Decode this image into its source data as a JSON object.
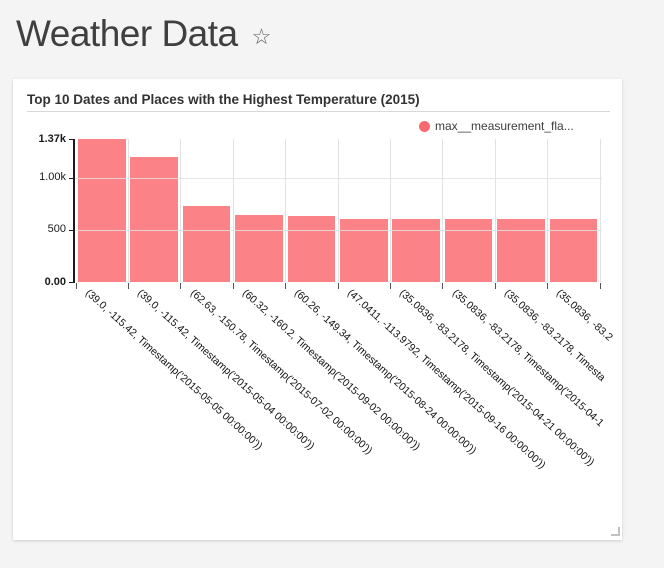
{
  "header": {
    "title": "Weather Data",
    "favorite_icon_glyph": "☆"
  },
  "chart_data": {
    "type": "bar",
    "title": "Top 10 Dates and Places with the Highest Temperature (2015)",
    "legend_label": "max__measurement_fla...",
    "legend_position": "top-right",
    "categories": [
      "(39.0, -115.42, Timestamp('2015-05-05 00:00:00'))",
      "(39.0, -115.42, Timestamp('2015-05-04 00:00:00'))",
      "(62.63, -150.78, Timestamp('2015-07-02 00:00:00'))",
      "(60.32, -160.2, Timestamp('2015-09-02 00:00:00'))",
      "(60.26, -149.34, Timestamp('2015-08-24 00:00:00'))",
      "(47.0411, -113.9792, Timestamp('2015-09-16 00:00:00'))",
      "(35.0836, -83.2178, Timestamp('2015-04-21 00:00:00'))",
      "(35.0836, -83.2178, Timestamp('2015-04-1",
      "(35.0836, -83.2178, Timesta",
      "(35.0836, -83.2"
    ],
    "values": [
      1370,
      1200,
      725,
      645,
      630,
      605,
      600,
      600,
      600,
      600
    ],
    "ylim": [
      0,
      1370
    ],
    "yticks": [
      {
        "label": "0.00",
        "value": 0,
        "bold": true
      },
      {
        "label": "500",
        "value": 500,
        "bold": false
      },
      {
        "label": "1.00k",
        "value": 1000,
        "bold": false
      },
      {
        "label": "1.37k",
        "value": 1370,
        "bold": true
      }
    ],
    "xlabel": "",
    "ylabel": "",
    "grid": true,
    "x_label_rotation_deg": 42,
    "bar_color": "#fb8287",
    "legend_dot_color": "#f96a70"
  }
}
